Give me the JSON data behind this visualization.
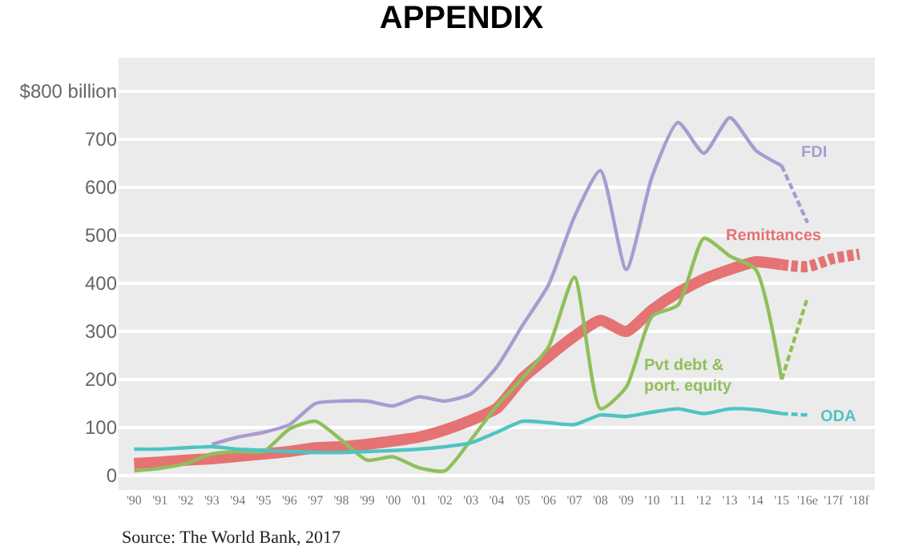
{
  "chart_data": {
    "type": "line",
    "title": "APPENDIX",
    "categories": [
      "'90",
      "'91",
      "'92",
      "'93",
      "'94",
      "'95",
      "'96",
      "'97",
      "'98",
      "'99",
      "'00",
      "'01",
      "'02",
      "'03",
      "'04",
      "'05",
      "'06",
      "'07",
      "'08",
      "'09",
      "'10",
      "'11",
      "'12",
      "'13",
      "'14",
      "'15",
      "'16e",
      "'17f",
      "'18f"
    ],
    "series": [
      {
        "name": "FDI",
        "color": "#a99bd0",
        "values": [
          null,
          null,
          null,
          65,
          80,
          90,
          106,
          150,
          155,
          155,
          145,
          164,
          155,
          170,
          226,
          313,
          397,
          539,
          635,
          429,
          623,
          735,
          671,
          745,
          677,
          645,
          null,
          null,
          null
        ]
      },
      {
        "color": "#a99bd0",
        "line_style": "dashed",
        "values": [
          null,
          null,
          null,
          null,
          null,
          null,
          null,
          null,
          null,
          null,
          null,
          null,
          null,
          null,
          null,
          null,
          null,
          null,
          null,
          null,
          null,
          null,
          null,
          null,
          null,
          645,
          526,
          null,
          null
        ]
      },
      {
        "name": "Remittances",
        "color": "#e57373",
        "values": [
          25,
          28,
          32,
          35,
          40,
          45,
          50,
          58,
          60,
          65,
          72,
          80,
          95,
          115,
          140,
          203,
          248,
          290,
          323,
          300,
          345,
          381,
          409,
          429,
          445,
          439,
          null,
          null,
          null
        ]
      },
      {
        "color": "#e57373",
        "line_style": "dashed",
        "values": [
          null,
          null,
          null,
          null,
          null,
          null,
          null,
          null,
          null,
          null,
          null,
          null,
          null,
          null,
          null,
          null,
          null,
          null,
          null,
          null,
          null,
          null,
          null,
          null,
          null,
          439,
          435,
          452,
          461
        ]
      },
      {
        "name": "Pvt debt &\nport. equity",
        "color": "#8fbf5a",
        "values": [
          10,
          15,
          25,
          45,
          50,
          50,
          97,
          113,
          74,
          32,
          39,
          16,
          10,
          74,
          145,
          203,
          268,
          413,
          139,
          184,
          332,
          355,
          494,
          457,
          429,
          200,
          null,
          null,
          null
        ]
      },
      {
        "color": "#8fbf5a",
        "line_style": "dashed",
        "values": [
          null,
          null,
          null,
          null,
          null,
          null,
          null,
          null,
          null,
          null,
          null,
          null,
          null,
          null,
          null,
          null,
          null,
          null,
          null,
          null,
          null,
          null,
          null,
          null,
          null,
          200,
          371,
          null,
          null
        ]
      },
      {
        "name": "ODA",
        "color": "#4fc3c3",
        "values": [
          55,
          55,
          58,
          60,
          55,
          52,
          50,
          48,
          48,
          50,
          52,
          55,
          60,
          68,
          90,
          113,
          110,
          106,
          126,
          123,
          132,
          139,
          129,
          139,
          137,
          129,
          null,
          null,
          null
        ]
      },
      {
        "color": "#4fc3c3",
        "line_style": "dashed",
        "values": [
          null,
          null,
          null,
          null,
          null,
          null,
          null,
          null,
          null,
          null,
          null,
          null,
          null,
          null,
          null,
          null,
          null,
          null,
          null,
          null,
          null,
          null,
          null,
          null,
          null,
          129,
          126,
          null,
          null
        ]
      }
    ],
    "ylim": [
      -30,
      870
    ],
    "yticks": [
      0,
      100,
      200,
      300,
      400,
      500,
      600,
      700,
      {
        "value": 800,
        "label": "$800 billion"
      }
    ],
    "grid": "y",
    "legend": false,
    "marker": "none",
    "annotations": [
      "Source: The World Bank, 2017"
    ]
  }
}
